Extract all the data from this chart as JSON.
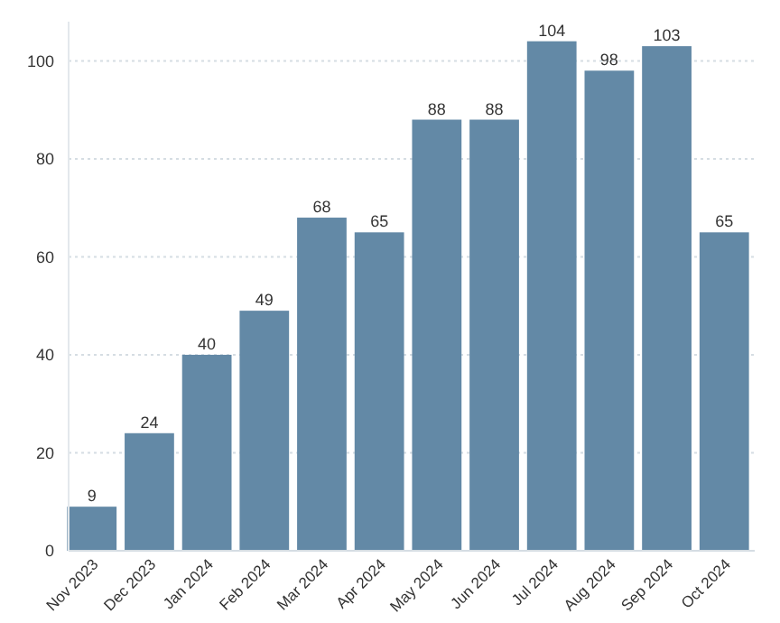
{
  "chart_data": {
    "type": "bar",
    "categories": [
      "Nov 2023",
      "Dec 2023",
      "Jan 2024",
      "Feb 2024",
      "Mar 2024",
      "Apr 2024",
      "May 2024",
      "Jun 2024",
      "Jul 2024",
      "Aug 2024",
      "Sep 2024",
      "Oct 2024"
    ],
    "values": [
      9,
      24,
      40,
      49,
      68,
      65,
      88,
      88,
      104,
      98,
      103,
      65
    ],
    "color": "#6389a6",
    "ylim": [
      0,
      108
    ],
    "yticks": [
      0,
      20,
      40,
      60,
      80,
      100
    ],
    "grid": "y",
    "data_labels": true
  }
}
